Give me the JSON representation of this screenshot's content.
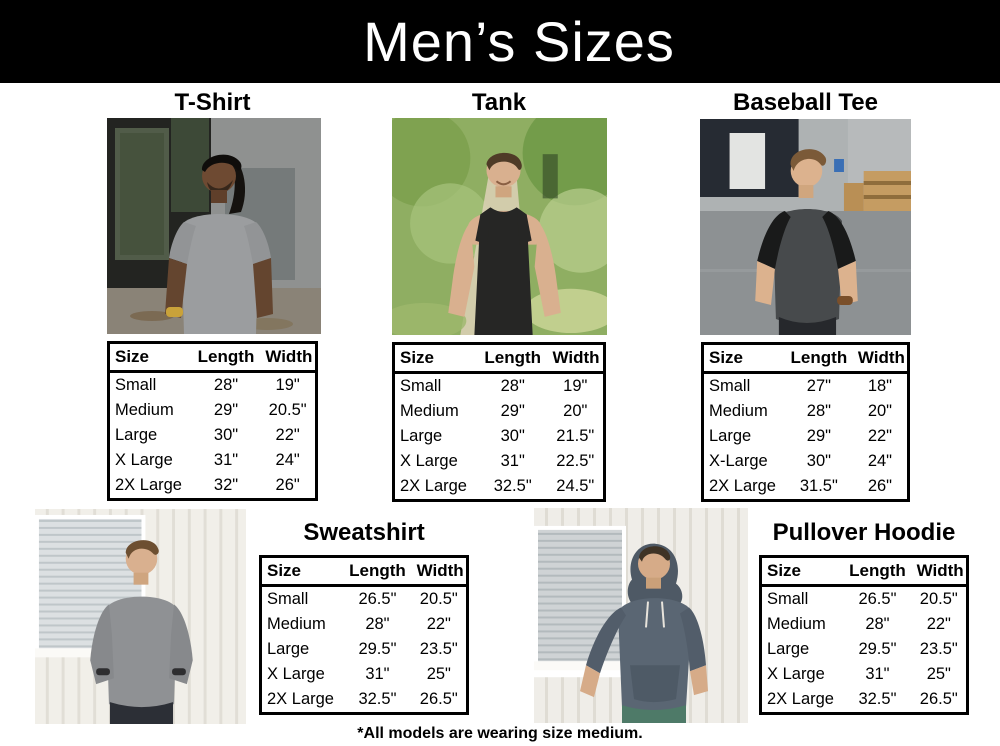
{
  "header": {
    "title": "Men’s Sizes"
  },
  "columns": [
    "Size",
    "Length",
    "Width"
  ],
  "products": [
    {
      "name": "T-Shirt",
      "photo_alt": "man-in-heather-gray-tshirt-industrial-yard",
      "garment_color": "#9b9d9f",
      "rows": [
        [
          "Small",
          "28\"",
          "19\""
        ],
        [
          "Medium",
          "29\"",
          "20.5\""
        ],
        [
          "Large",
          "30\"",
          "22\""
        ],
        [
          "X Large",
          "31\"",
          "24\""
        ],
        [
          "2X Large",
          "32\"",
          "26\""
        ]
      ]
    },
    {
      "name": "Tank",
      "photo_alt": "man-in-black-tank-top-forest-path",
      "garment_color": "#262625",
      "rows": [
        [
          "Small",
          "28\"",
          "19\""
        ],
        [
          "Medium",
          "29\"",
          "20\""
        ],
        [
          "Large",
          "30\"",
          "21.5\""
        ],
        [
          "X Large",
          "31\"",
          "22.5\""
        ],
        [
          "2X Large",
          "32.5\"",
          "24.5\""
        ]
      ]
    },
    {
      "name": "Baseball Tee",
      "photo_alt": "man-in-raglan-baseball-tee-parking-lot",
      "garment_color": "#474a4c",
      "sleeve_color": "#191a1a",
      "rows": [
        [
          "Small",
          "27\"",
          "18\""
        ],
        [
          "Medium",
          "28\"",
          "20\""
        ],
        [
          "Large",
          "29\"",
          "22\""
        ],
        [
          "X-Large",
          "30\"",
          "24\""
        ],
        [
          "2X Large",
          "31.5\"",
          "26\""
        ]
      ]
    },
    {
      "name": "Sweatshirt",
      "photo_alt": "man-in-gray-crewneck-sweatshirt-white-wall",
      "garment_color": "#8f9194",
      "rows": [
        [
          "Small",
          "26.5\"",
          "20.5\""
        ],
        [
          "Medium",
          "28\"",
          "22\""
        ],
        [
          "Large",
          "29.5\"",
          "23.5\""
        ],
        [
          "X Large",
          "31\"",
          "25\""
        ],
        [
          "2X Large",
          "32.5\"",
          "26.5\""
        ]
      ]
    },
    {
      "name": "Pullover Hoodie",
      "photo_alt": "man-in-slate-blue-pullover-hoodie-white-wall",
      "garment_color": "#5a6673",
      "rows": [
        [
          "Small",
          "26.5\"",
          "20.5\""
        ],
        [
          "Medium",
          "28\"",
          "22\""
        ],
        [
          "Large",
          "29.5\"",
          "23.5\""
        ],
        [
          "X Large",
          "31\"",
          "25\""
        ],
        [
          "2X Large",
          "32.5\"",
          "26.5\""
        ]
      ]
    }
  ],
  "footnote": "*All models are wearing size medium.",
  "colors": {
    "banner_bg": "#000000",
    "banner_text": "#ffffff",
    "body_text": "#000000",
    "table_border": "#000000",
    "page_bg": "#ffffff"
  }
}
